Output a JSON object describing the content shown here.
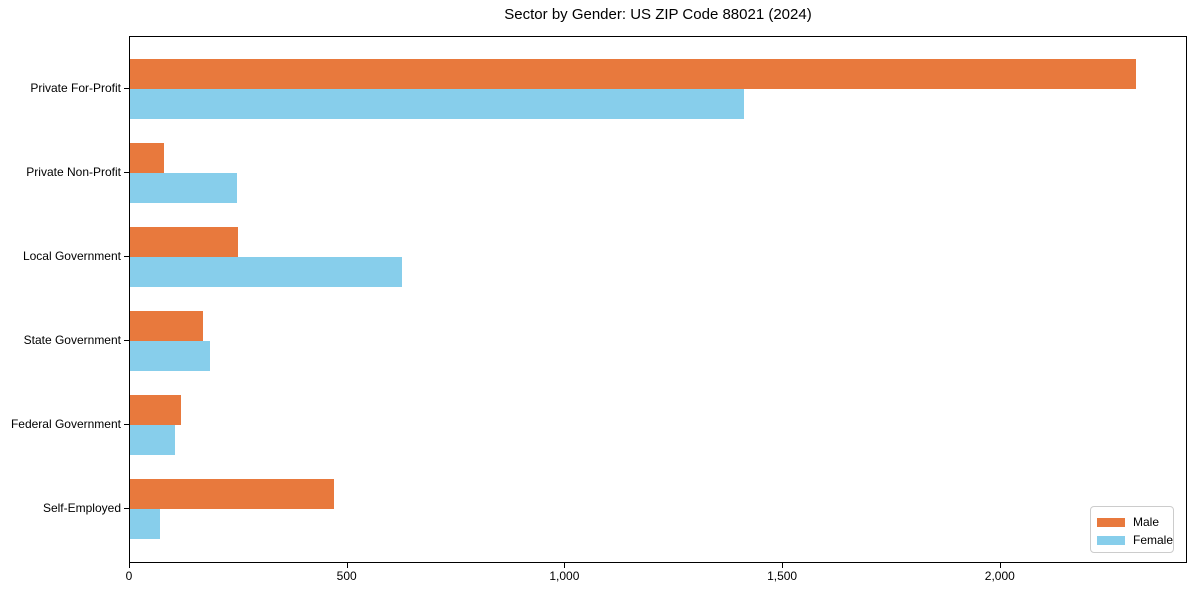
{
  "title": "Sector by Gender: US ZIP Code 88021 (2024)",
  "chart_data": {
    "type": "bar",
    "orientation": "horizontal",
    "title": "Sector by Gender: US ZIP Code 88021 (2024)",
    "categories": [
      "Private For-Profit",
      "Private Non-Profit",
      "Local Government",
      "State Government",
      "Federal Government",
      "Self-Employed"
    ],
    "series": [
      {
        "name": "Male",
        "color": "#e8793d",
        "values": [
          2310,
          78,
          248,
          168,
          117,
          469
        ]
      },
      {
        "name": "Female",
        "color": "#87ceeb",
        "values": [
          1410,
          245,
          625,
          184,
          103,
          69
        ]
      }
    ],
    "xlabel": "",
    "ylabel": "",
    "xlim": [
      0,
      2430
    ],
    "xticks": [
      0,
      500,
      1000,
      1500,
      2000
    ],
    "xtick_labels": [
      "0",
      "500",
      "1,000",
      "1,500",
      "2,000"
    ],
    "grid": false,
    "legend_position": "lower right"
  }
}
